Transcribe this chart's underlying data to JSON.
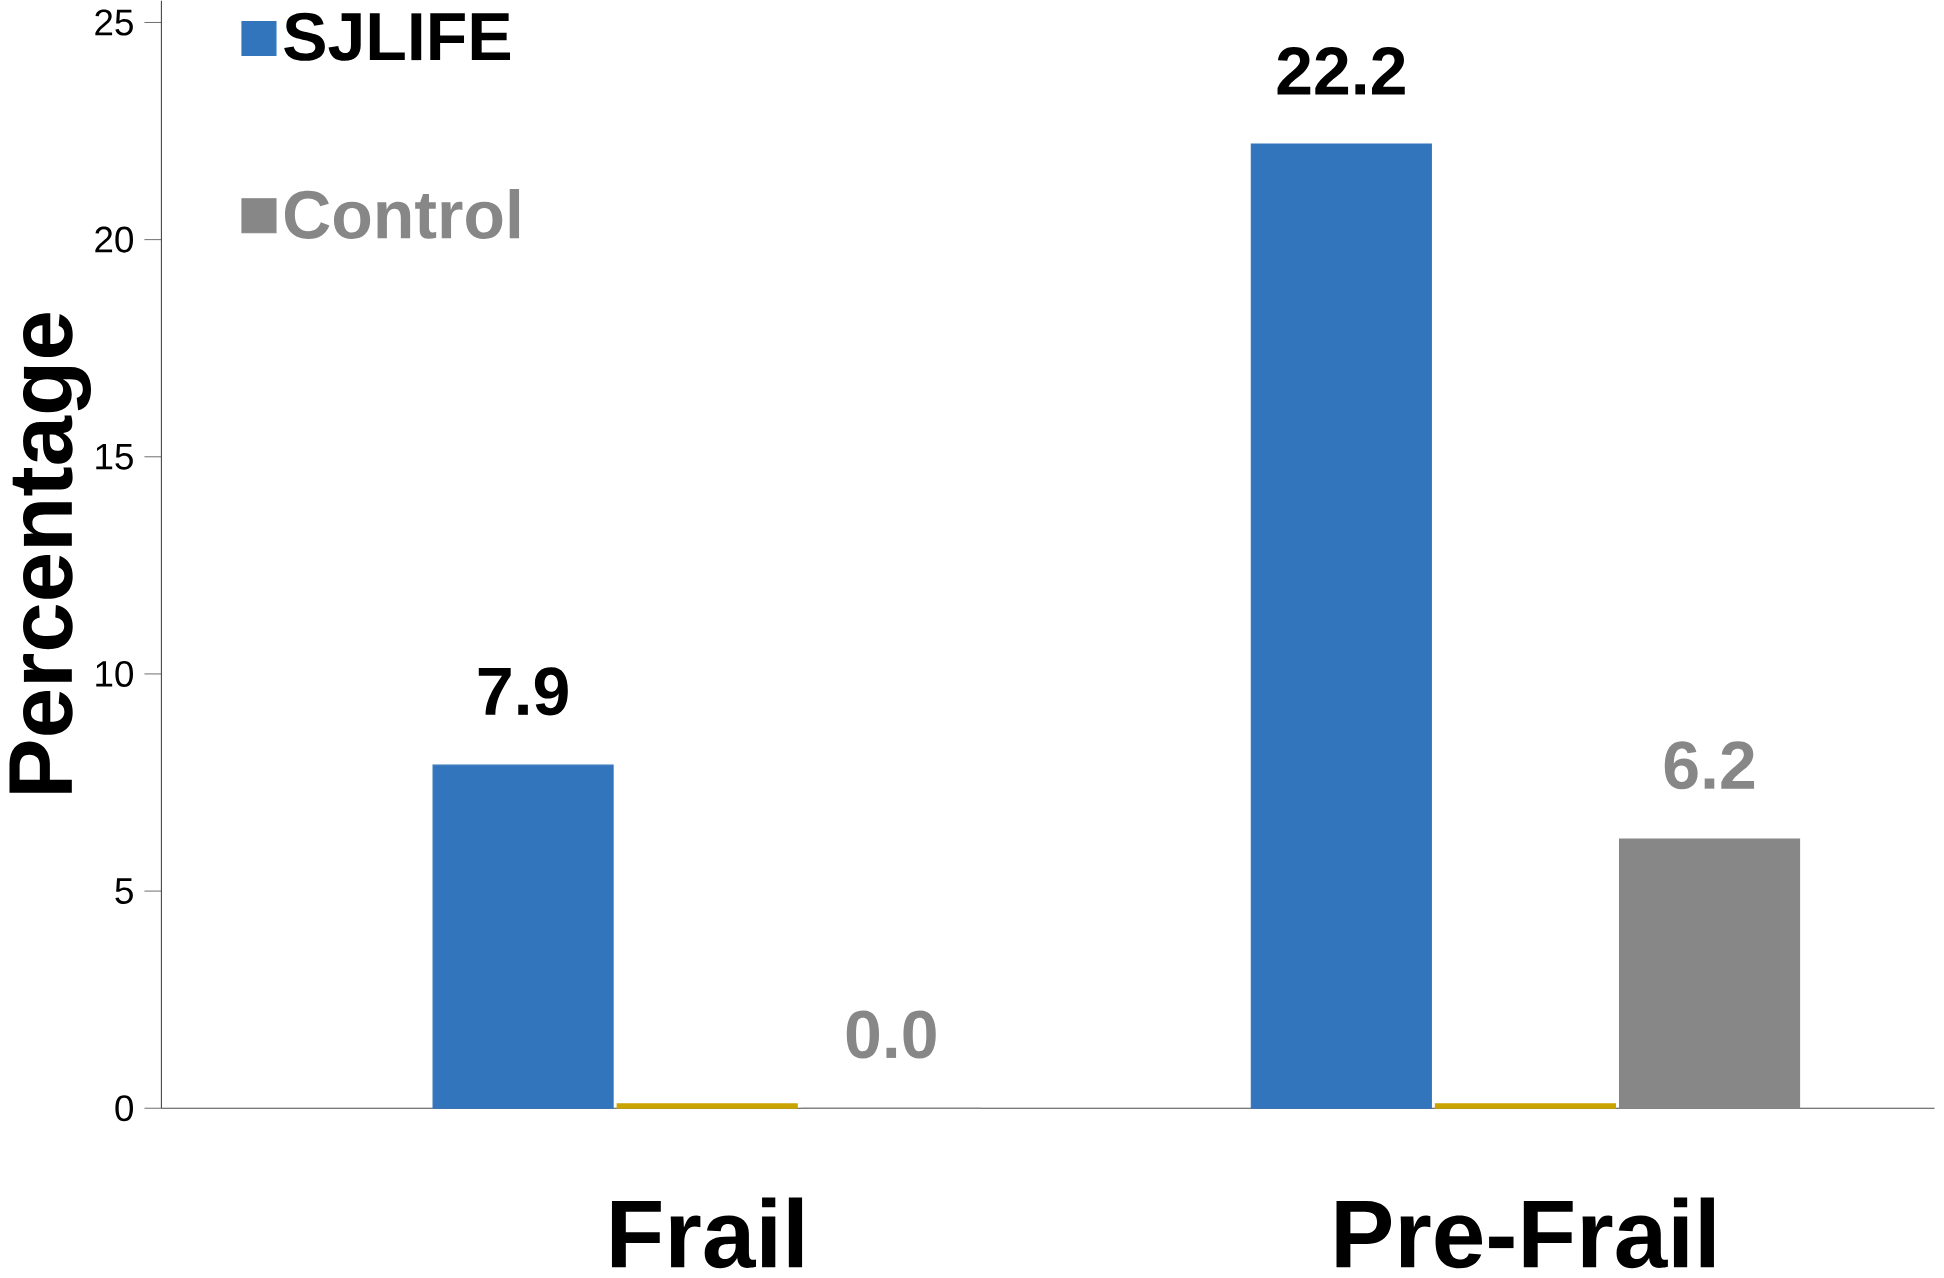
{
  "chart_data": {
    "type": "bar",
    "ylabel": "Percentage",
    "categories": [
      "Frail",
      "Pre-Frail"
    ],
    "series": [
      {
        "name": "SJLIFE",
        "color": "#3375bd",
        "values": [
          7.9,
          22.2
        ],
        "value_labels": [
          "7.9",
          "22.2"
        ]
      },
      {
        "color": "#c9a400",
        "values": [
          0.1,
          0.1
        ]
      },
      {
        "name": "Control",
        "color": "#878787",
        "values": [
          0.0,
          6.2
        ],
        "value_labels": [
          "0.0",
          "6.2"
        ]
      }
    ],
    "ylim": [
      0,
      25.5
    ],
    "yticks": [
      0,
      5,
      10,
      15,
      20,
      25
    ],
    "grid": false,
    "legend": "top left"
  }
}
